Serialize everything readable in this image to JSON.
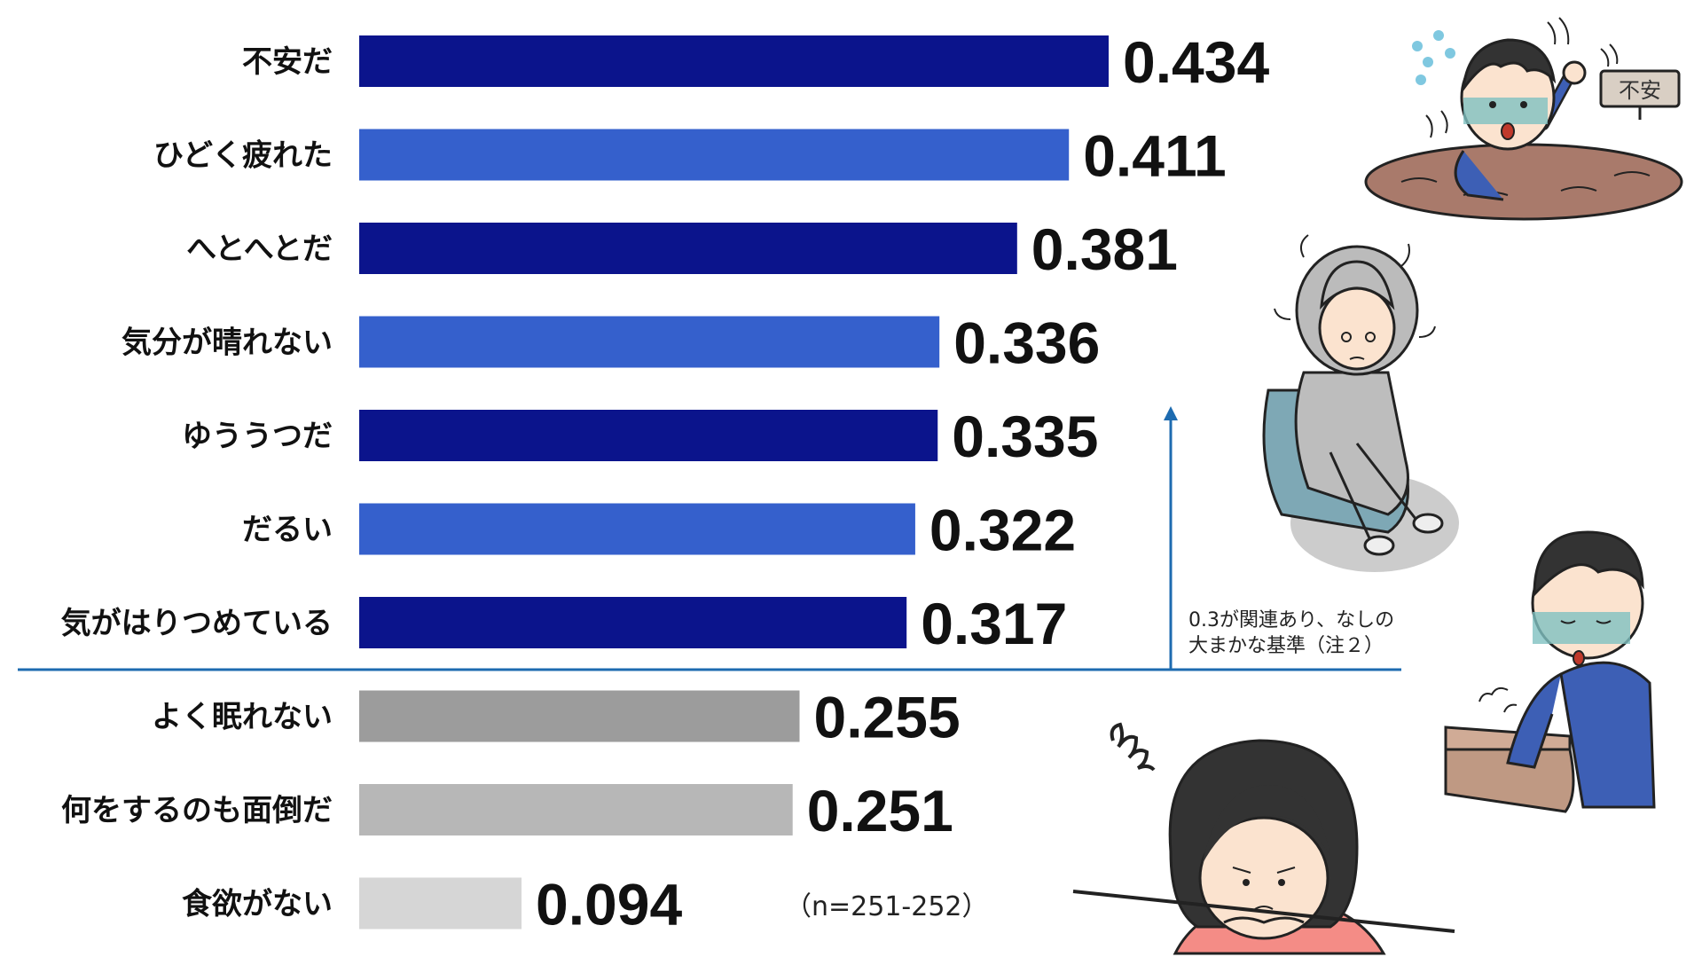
{
  "chart_data": {
    "type": "bar",
    "orientation": "horizontal",
    "categories": [
      "不安だ",
      "ひどく疲れた",
      "へとへとだ",
      "気分が晴れない",
      "ゆううつだ",
      "だるい",
      "気がはりつめている",
      "よく眠れない",
      "何をするのも面倒だ",
      "食欲がない"
    ],
    "values": [
      0.434,
      0.411,
      0.381,
      0.336,
      0.335,
      0.322,
      0.317,
      0.255,
      0.251,
      0.094
    ],
    "value_labels": [
      "0.434",
      "0.411",
      "0.381",
      "0.336",
      "0.335",
      "0.322",
      "0.317",
      "0.255",
      "0.251",
      "0.094"
    ],
    "bar_colors": [
      "#0b148c",
      "#3560cc",
      "#0b148c",
      "#3560cc",
      "#0b148c",
      "#3560cc",
      "#0b148c",
      "#9c9c9c",
      "#b7b7b7",
      "#d6d6d6"
    ],
    "xlim": [
      0,
      0.434
    ],
    "threshold": {
      "value": 0.3,
      "line_color": "#1d6bb0",
      "note_lines": [
        "0.3が関連あり、なしの",
        "大まかな基準（注２）"
      ]
    },
    "sample_note": "（n=251-252）",
    "illustrations": {
      "sign_text": "不安"
    }
  }
}
